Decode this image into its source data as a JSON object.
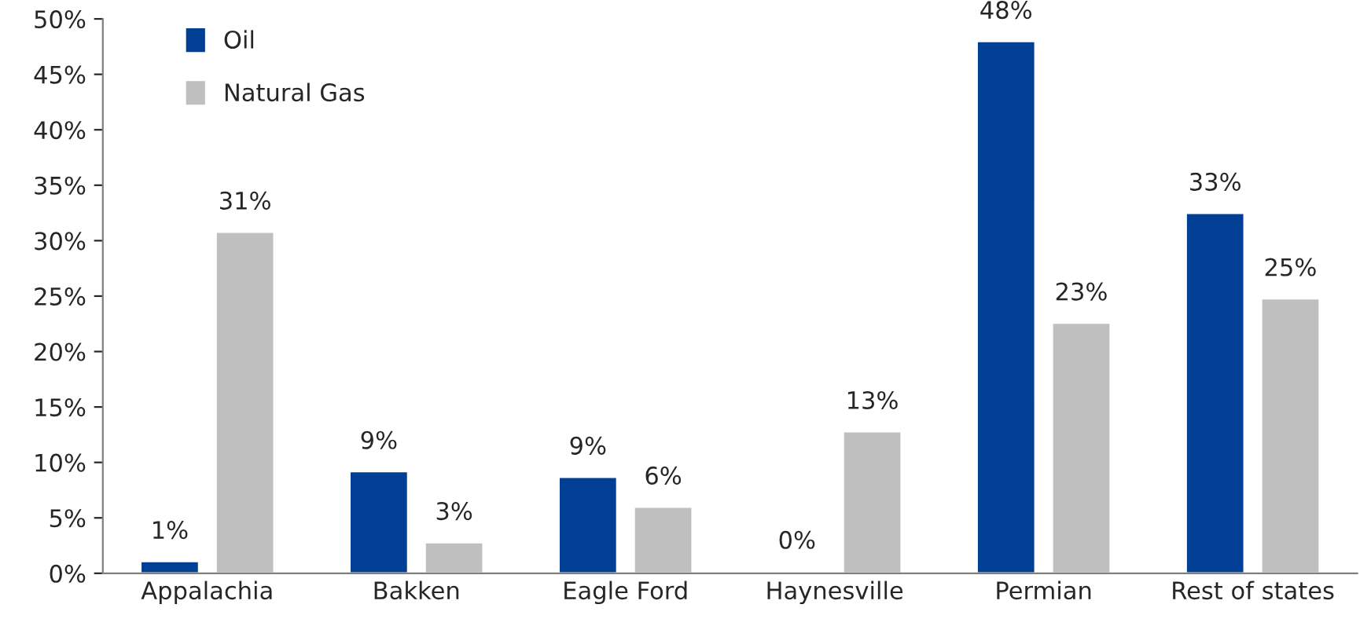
{
  "chart_data": {
    "type": "bar",
    "categories": [
      "Appalachia",
      "Bakken",
      "Eagle Ford",
      "Haynesville",
      "Permian",
      "Rest of states"
    ],
    "series": [
      {
        "name": "Oil",
        "color": "#003f94",
        "values": [
          1.1,
          9.2,
          8.7,
          0.2,
          48,
          32.5
        ],
        "value_labels": [
          "1%",
          "9%",
          "9%",
          "0%",
          "48%",
          "33%"
        ]
      },
      {
        "name": "Natural Gas",
        "color": "#bfbfbf",
        "values": [
          30.8,
          2.8,
          6.0,
          12.8,
          22.6,
          24.8
        ],
        "value_labels": [
          "31%",
          "3%",
          "6%",
          "13%",
          "23%",
          "25%"
        ]
      }
    ],
    "ylim": [
      0,
      50
    ],
    "yticks": [
      {
        "value": 0,
        "label": "0%"
      },
      {
        "value": 5,
        "label": "5%"
      },
      {
        "value": 10,
        "label": "10%"
      },
      {
        "value": 15,
        "label": "15%"
      },
      {
        "value": 20,
        "label": "20%"
      },
      {
        "value": 25,
        "label": "25%"
      },
      {
        "value": 30,
        "label": "30%"
      },
      {
        "value": 35,
        "label": "35%"
      },
      {
        "value": 40,
        "label": "40%"
      },
      {
        "value": 45,
        "label": "45%"
      },
      {
        "value": 50,
        "label": "50%"
      }
    ],
    "grid": false,
    "legend": "top left"
  }
}
